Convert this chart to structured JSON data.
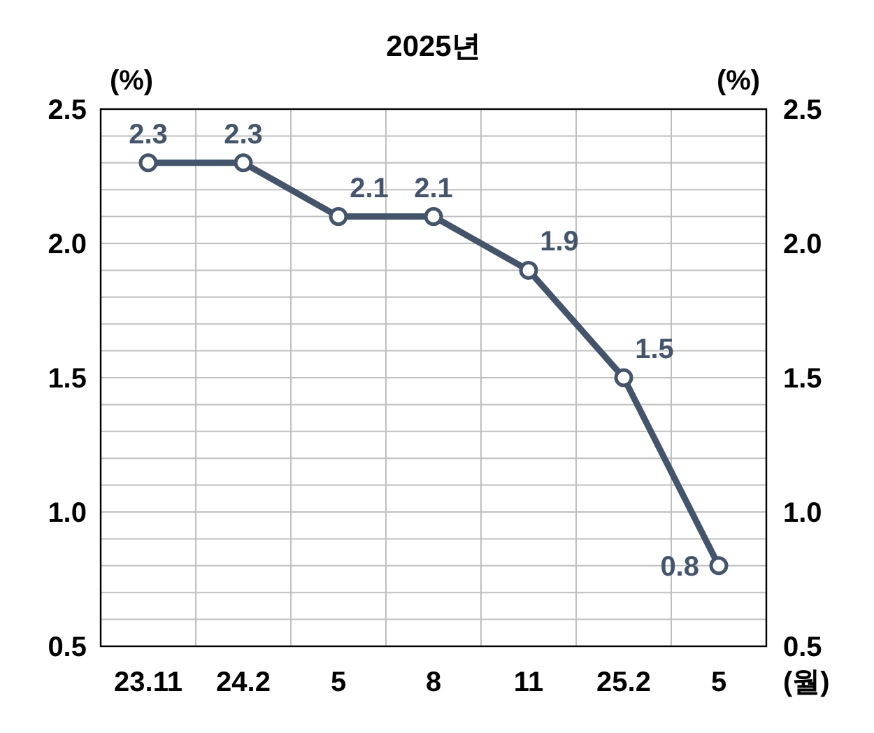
{
  "chart_data": {
    "type": "line",
    "title": "2025년",
    "ylabel": "(%)",
    "y2label": "(%)",
    "xlabel": "(월)",
    "categories": [
      "23.11",
      "24.2",
      "5",
      "8",
      "11",
      "25.2",
      "5"
    ],
    "series": [
      {
        "color": "#44546a",
        "values": [
          2.3,
          2.3,
          2.1,
          2.1,
          1.9,
          1.5,
          0.8
        ]
      }
    ],
    "ylim": [
      0.5,
      2.5
    ],
    "yticks": [
      {
        "value": 0.5,
        "label": "0.5"
      },
      {
        "value": 0.6,
        "label": null
      },
      {
        "value": 0.7,
        "label": null
      },
      {
        "value": 0.8,
        "label": null
      },
      {
        "value": 0.9,
        "label": null
      },
      {
        "value": 1.0,
        "label": "1.0"
      },
      {
        "value": 1.1,
        "label": null
      },
      {
        "value": 1.2,
        "label": null
      },
      {
        "value": 1.3,
        "label": null
      },
      {
        "value": 1.4,
        "label": null
      },
      {
        "value": 1.5,
        "label": "1.5"
      },
      {
        "value": 1.6,
        "label": null
      },
      {
        "value": 1.7,
        "label": null
      },
      {
        "value": 1.8,
        "label": null
      },
      {
        "value": 1.9,
        "label": null
      },
      {
        "value": 2.0,
        "label": "2.0"
      },
      {
        "value": 2.1,
        "label": null
      },
      {
        "value": 2.2,
        "label": null
      },
      {
        "value": 2.3,
        "label": null
      },
      {
        "value": 2.4,
        "label": null
      },
      {
        "value": 2.5,
        "label": "2.5"
      }
    ],
    "y2lim": [
      0.5,
      2.5
    ],
    "y2ticks": [
      {
        "value": 0.5,
        "label": "0.5"
      },
      {
        "value": 1.0,
        "label": "1.0"
      },
      {
        "value": 1.5,
        "label": "1.5"
      },
      {
        "value": 2.0,
        "label": "2.0"
      },
      {
        "value": 2.5,
        "label": "2.5"
      }
    ],
    "grid": true,
    "marker": "circle",
    "line_style": "solid",
    "data_labels": true
  }
}
